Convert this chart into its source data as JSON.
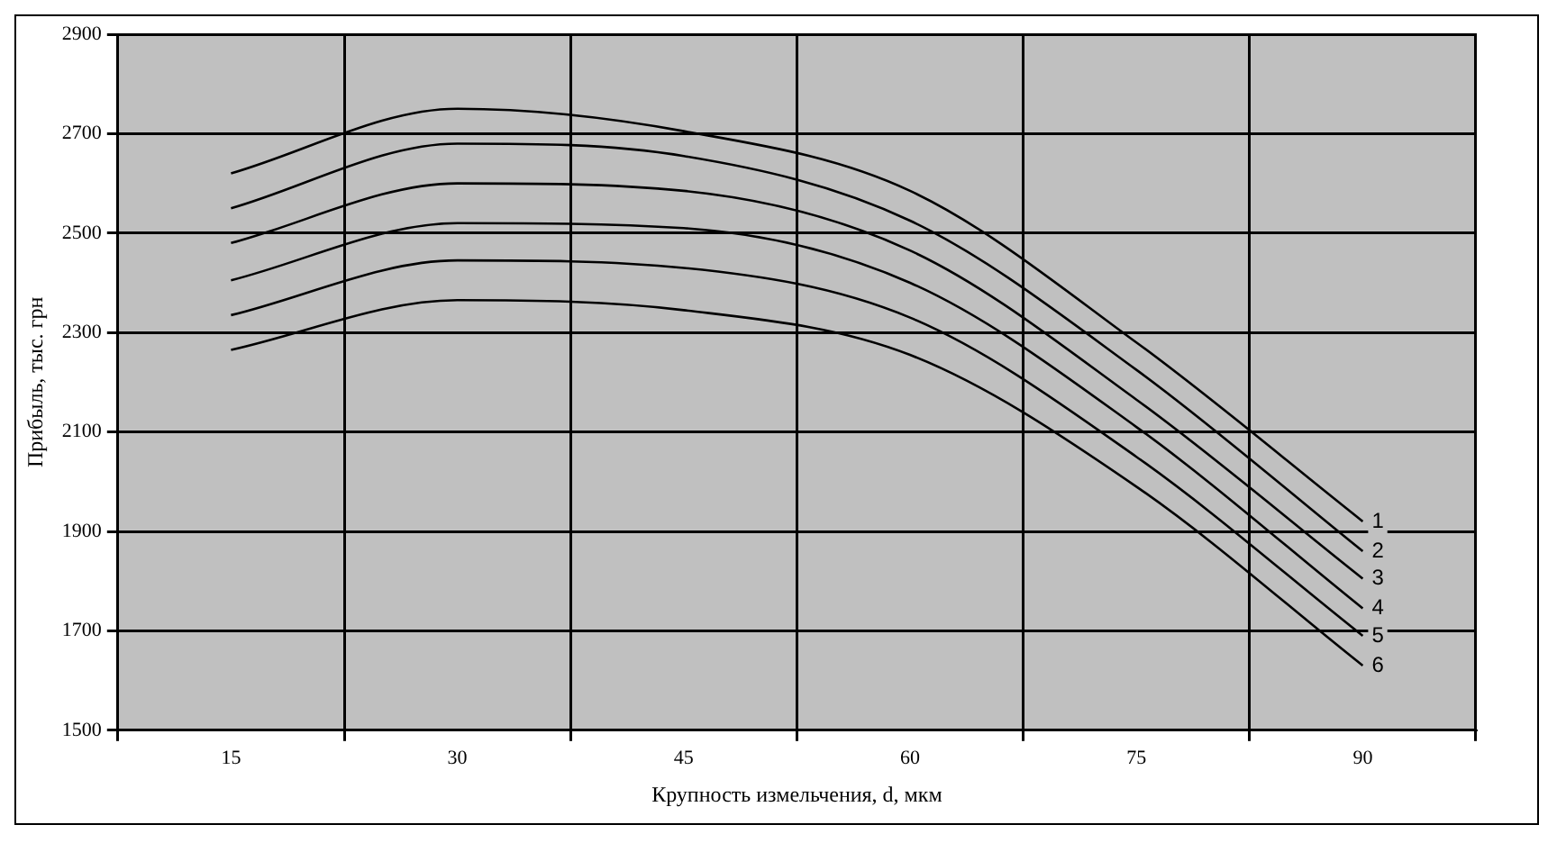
{
  "chart_data": {
    "type": "line",
    "xlabel": "Крупность измельчения, d, мкм",
    "ylabel": "Прибыль, тыс. грн",
    "categories": [
      "15",
      "30",
      "45",
      "60",
      "75",
      "90"
    ],
    "series": [
      {
        "name": "1",
        "color": "#000000",
        "values": [
          2620,
          2750,
          2705,
          2585,
          2280,
          1920
        ]
      },
      {
        "name": "2",
        "color": "#000000",
        "values": [
          2550,
          2680,
          2655,
          2525,
          2225,
          1860
        ]
      },
      {
        "name": "3",
        "color": "#000000",
        "values": [
          2480,
          2600,
          2585,
          2465,
          2165,
          1805
        ]
      },
      {
        "name": "4",
        "color": "#000000",
        "values": [
          2405,
          2520,
          2510,
          2400,
          2110,
          1745
        ]
      },
      {
        "name": "5",
        "color": "#000000",
        "values": [
          2335,
          2445,
          2430,
          2330,
          2050,
          1690
        ]
      },
      {
        "name": "6",
        "color": "#000000",
        "values": [
          2265,
          2365,
          2345,
          2255,
          1990,
          1630
        ]
      }
    ],
    "ylim": [
      1500,
      2900
    ],
    "yticks": [
      1500,
      1700,
      1900,
      2100,
      2300,
      2500,
      2700,
      2900
    ],
    "grid": true,
    "legend": false,
    "marker": "none",
    "line_style": "solid"
  }
}
